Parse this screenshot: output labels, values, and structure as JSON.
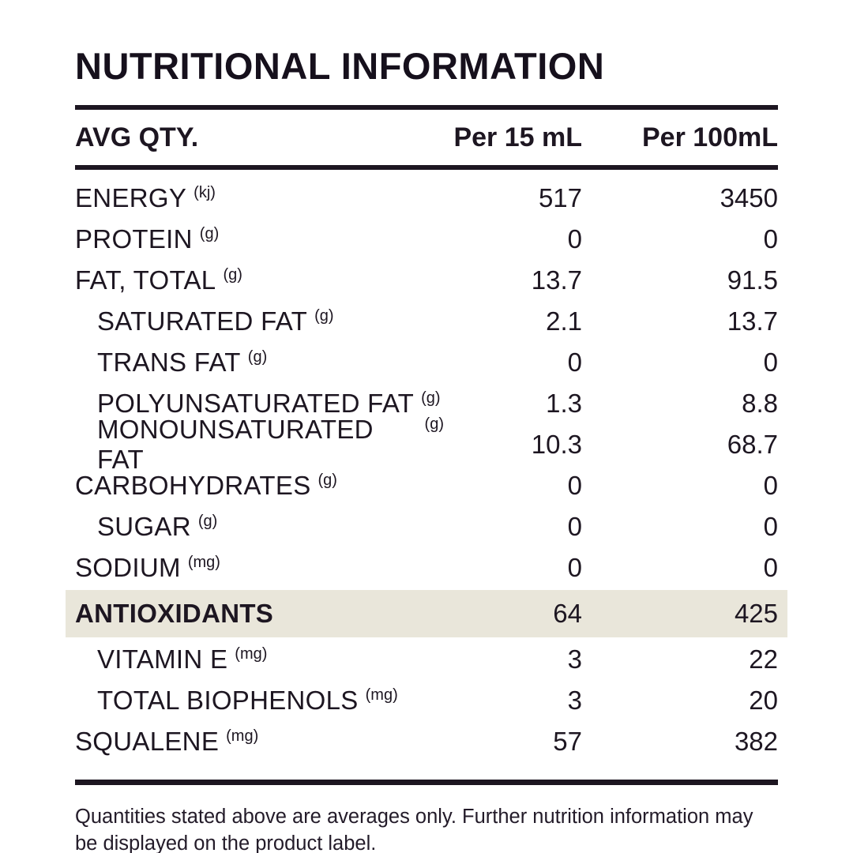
{
  "page": {
    "background_color": "#ffffff",
    "text_color": "#1d1621",
    "highlight_color": "#e9e6da"
  },
  "title": "NUTRITIONAL INFORMATION",
  "table": {
    "header": {
      "col_label": "AVG QTY.",
      "col_per15": "Per 15 mL",
      "col_per100": "Per 100mL"
    },
    "rows": [
      {
        "label": "ENERGY",
        "unit": "(kj)",
        "per15": "517",
        "per100": "3450",
        "indent": false,
        "highlight": false
      },
      {
        "label": "PROTEIN",
        "unit": "(g)",
        "per15": "0",
        "per100": "0",
        "indent": false,
        "highlight": false
      },
      {
        "label": "FAT, TOTAL",
        "unit": "(g)",
        "per15": "13.7",
        "per100": "91.5",
        "indent": false,
        "highlight": false
      },
      {
        "label": "SATURATED FAT",
        "unit": "(g)",
        "per15": "2.1",
        "per100": "13.7",
        "indent": true,
        "highlight": false
      },
      {
        "label": "TRANS FAT",
        "unit": "(g)",
        "per15": "0",
        "per100": "0",
        "indent": true,
        "highlight": false
      },
      {
        "label": "POLYUNSATURATED FAT",
        "unit": "(g)",
        "per15": "1.3",
        "per100": "8.8",
        "indent": true,
        "highlight": false
      },
      {
        "label": "MONOUNSATURATED FAT",
        "unit": "(g)",
        "per15": "10.3",
        "per100": "68.7",
        "indent": true,
        "highlight": false
      },
      {
        "label": "CARBOHYDRATES",
        "unit": "(g)",
        "per15": "0",
        "per100": "0",
        "indent": false,
        "highlight": false
      },
      {
        "label": "SUGAR",
        "unit": "(g)",
        "per15": "0",
        "per100": "0",
        "indent": true,
        "highlight": false
      },
      {
        "label": "SODIUM",
        "unit": "(mg)",
        "per15": "0",
        "per100": "0",
        "indent": false,
        "highlight": false
      },
      {
        "label": "ANTIOXIDANTS",
        "unit": "",
        "per15": "64",
        "per100": "425",
        "indent": false,
        "highlight": true
      },
      {
        "label": "VITAMIN E",
        "unit": "(mg)",
        "per15": "3",
        "per100": "22",
        "indent": true,
        "highlight": false
      },
      {
        "label": "TOTAL BIOPHENOLS",
        "unit": "(mg)",
        "per15": "3",
        "per100": "20",
        "indent": true,
        "highlight": false
      },
      {
        "label": "SQUALENE",
        "unit": "(mg)",
        "per15": "57",
        "per100": "382",
        "indent": false,
        "highlight": false
      }
    ]
  },
  "footer": {
    "note": "Quantities stated above are averages only. Further nutrition information may be displayed on the product label."
  }
}
